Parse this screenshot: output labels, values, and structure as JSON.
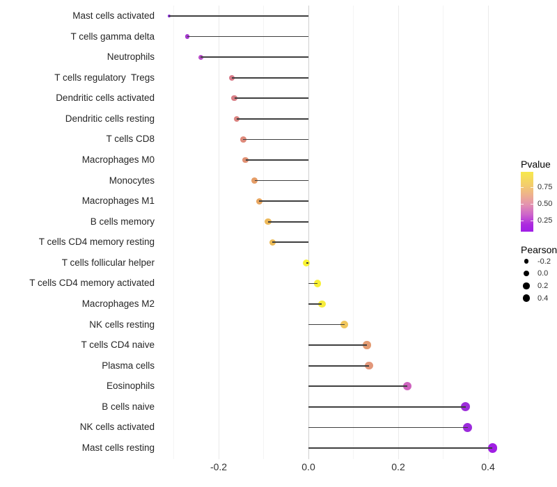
{
  "chart_data": {
    "type": "bar",
    "variant": "horizontal-lollipop",
    "title": "",
    "xlabel": "",
    "ylabel": "",
    "x_ticks": [
      -0.2,
      0.0,
      0.2,
      0.4
    ],
    "x_ticks_labels": [
      "-0.2",
      "0.0",
      "0.2",
      "0.4"
    ],
    "x_minor_gridlines": [
      -0.3,
      -0.1,
      0.1,
      0.3
    ],
    "xlim": [
      -0.33,
      0.45
    ],
    "grid": "vertical only, light gray on white (theme_minimal style)",
    "legend_position": "right",
    "categories": [
      "Mast cells activated",
      "T cells gamma delta",
      "Neutrophils",
      "T cells regulatory  Tregs",
      "Dendritic cells activated",
      "Dendritic cells resting",
      "T cells CD8",
      "Macrophages M0",
      "Monocytes",
      "Macrophages M1",
      "B cells memory",
      "T cells CD4 memory resting",
      "T cells follicular helper",
      "T cells CD4 memory activated",
      "Macrophages M2",
      "NK cells resting",
      "T cells CD4 naive",
      "Plasma cells",
      "Eosinophils",
      "B cells naive",
      "NK cells activated",
      "Mast cells resting"
    ],
    "series": [
      {
        "name": "Pearson",
        "values": [
          -0.31,
          -0.27,
          -0.24,
          -0.17,
          -0.165,
          -0.16,
          -0.145,
          -0.14,
          -0.12,
          -0.11,
          -0.09,
          -0.08,
          -0.005,
          0.02,
          0.03,
          0.08,
          0.13,
          0.135,
          0.22,
          0.35,
          0.355,
          0.41
        ]
      },
      {
        "name": "Pvalue (approx, read from color scale)",
        "values": [
          0.1,
          0.17,
          0.24,
          0.5,
          0.52,
          0.54,
          0.57,
          0.6,
          0.65,
          0.68,
          0.73,
          0.75,
          0.98,
          0.96,
          0.93,
          0.78,
          0.63,
          0.6,
          0.33,
          0.12,
          0.12,
          0.08
        ]
      }
    ],
    "point_colors": [
      "#8023CE",
      "#A438CE",
      "#B94FC9",
      "#D87A88",
      "#D87E85",
      "#DA8380",
      "#DE8A7B",
      "#E09073",
      "#E59D67",
      "#E8A660",
      "#EDB95A",
      "#EDBC58",
      "#F8F233",
      "#F8F035",
      "#F6EC3C",
      "#F0C65C",
      "#E39B72",
      "#E2977A",
      "#CE63BE",
      "#9D2EDA",
      "#9C2BDC",
      "#A01FE3"
    ]
  },
  "legend": {
    "pvalue": {
      "title": "Pvalue",
      "tick_labels": [
        "0.75",
        "0.50",
        "0.25"
      ],
      "tick_values": [
        0.75,
        0.5,
        0.25
      ],
      "range": [
        0.08,
        0.98
      ],
      "gradient_top_to_bottom": [
        "#F7E94C 0%",
        "#F3CD6C 22%",
        "#EDAE90 40%",
        "#E392B0 55%",
        "#CC63CB 72%",
        "#AC2ADF 88%",
        "#A01FE6 100%"
      ]
    },
    "pearson": {
      "title": "Pearson",
      "items": [
        {
          "label": "-0.2",
          "value": -0.2
        },
        {
          "label": "0.0",
          "value": 0.0
        },
        {
          "label": "0.2",
          "value": 0.2
        },
        {
          "label": "0.4",
          "value": 0.4
        }
      ],
      "dot_color": "#000000"
    }
  }
}
